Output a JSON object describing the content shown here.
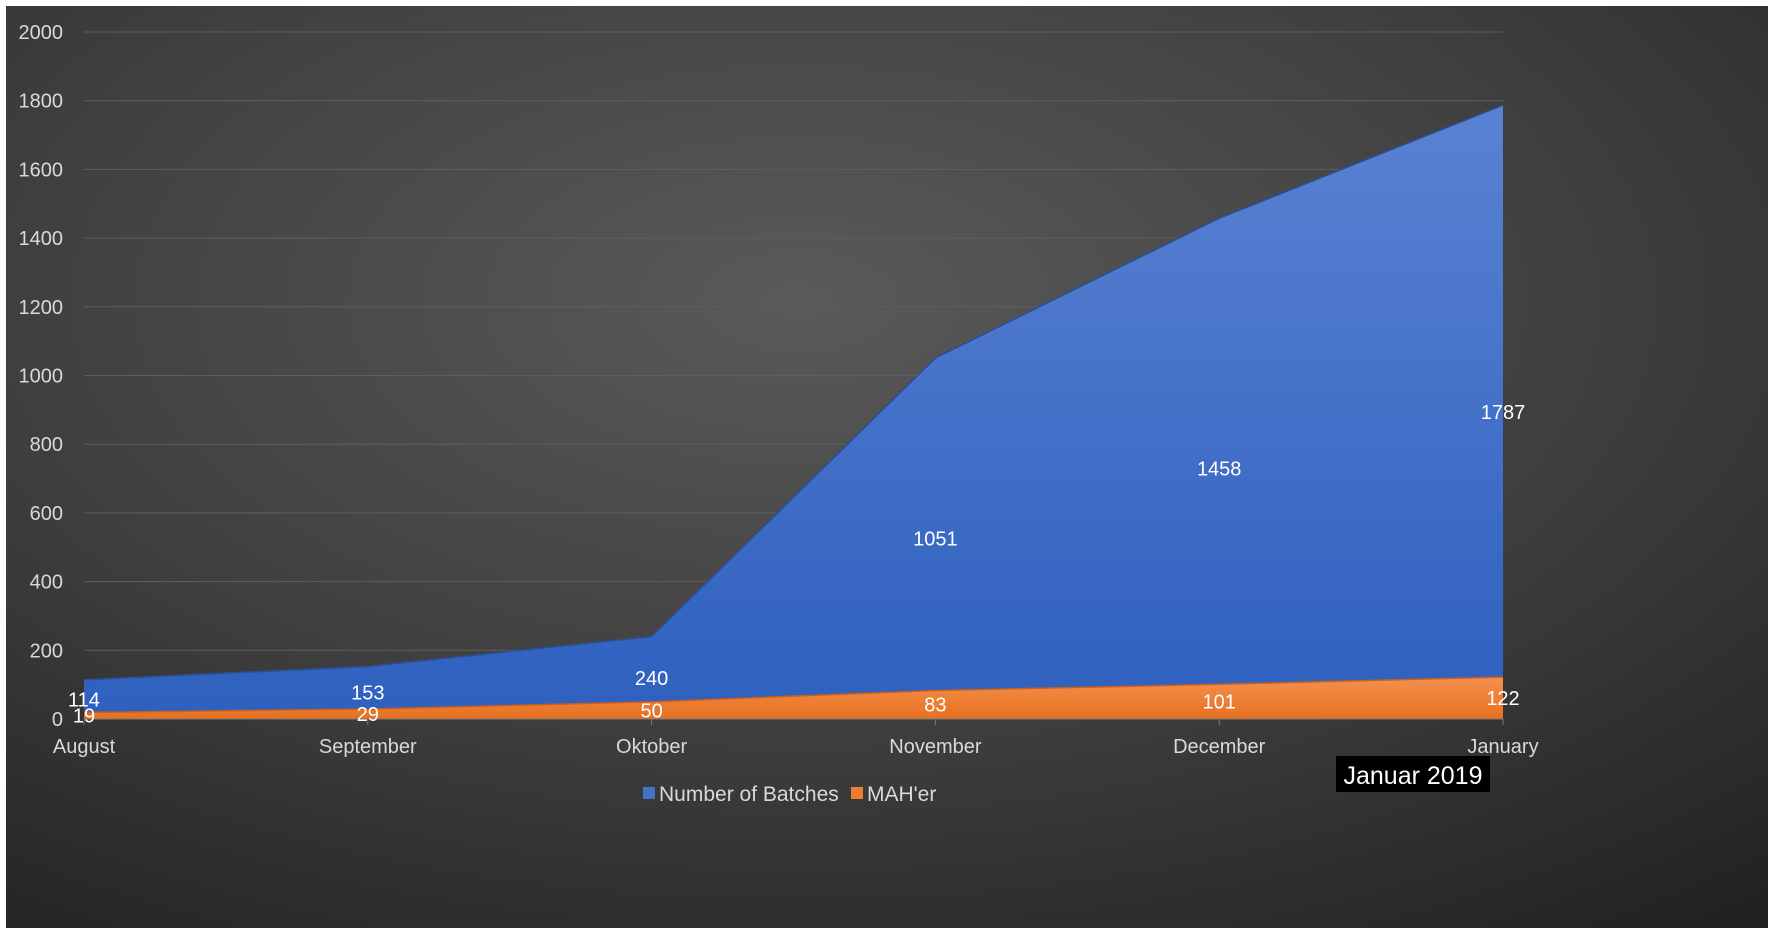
{
  "chart_data": {
    "type": "area",
    "categories": [
      "August",
      "September",
      "Oktober",
      "November",
      "December",
      "January"
    ],
    "series": [
      {
        "name": "Number of Batches",
        "values": [
          114,
          153,
          240,
          1051,
          1458,
          1787
        ],
        "color": "#3a6ccb"
      },
      {
        "name": "MAH'er",
        "values": [
          19,
          29,
          50,
          83,
          101,
          122
        ],
        "color": "#ed7d31"
      }
    ],
    "y_ticks": [
      "0",
      "200",
      "400",
      "600",
      "800",
      "1000",
      "1200",
      "1400",
      "1600",
      "1800",
      "2000"
    ],
    "ylim": [
      0,
      2000
    ],
    "grid": true,
    "legend_position": "bottom",
    "annotation": "Januar 2019",
    "background_color": "#3f3f3f"
  }
}
